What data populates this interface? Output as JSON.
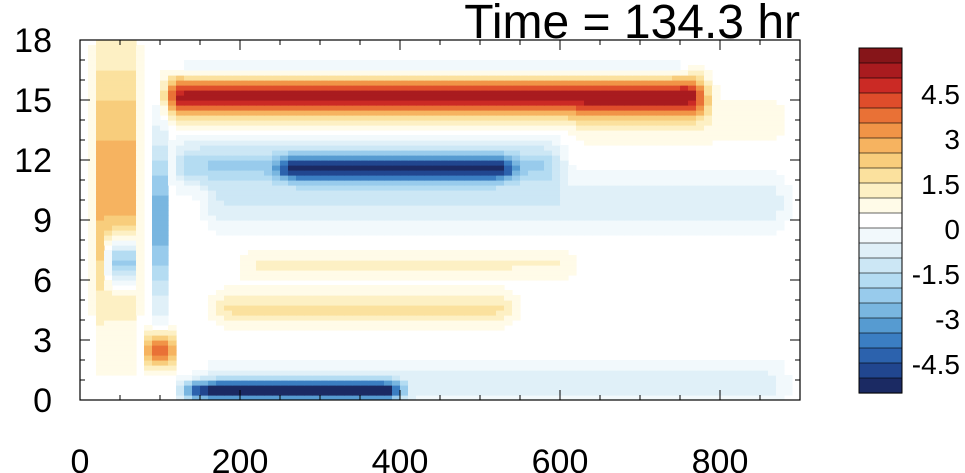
{
  "chart_data": {
    "type": "heatmap",
    "title": "Time = 134.3 hr",
    "xlim": [
      0,
      900
    ],
    "ylim": [
      0,
      18
    ],
    "x_ticks": [
      0,
      200,
      400,
      600,
      800
    ],
    "x_tick_labels": [
      "0",
      "200",
      "400",
      "600",
      "800"
    ],
    "y_ticks": [
      0,
      3,
      6,
      9,
      12,
      15,
      18
    ],
    "y_tick_labels": [
      "0",
      "3",
      "6",
      "9",
      "12",
      "15",
      "18"
    ],
    "xlabel": "",
    "ylabel": "",
    "colorbar": {
      "levels": [
        -5.5,
        -5,
        -4.5,
        -4,
        -3.5,
        -3,
        -2.5,
        -2,
        -1.5,
        -1,
        -0.5,
        0,
        0.5,
        1,
        1.5,
        2,
        2.5,
        3,
        3.5,
        4,
        4.5,
        5,
        5.5
      ],
      "colors": [
        "#1b2a63",
        "#21468f",
        "#2c62ad",
        "#3b7ec2",
        "#569bd1",
        "#79b6e0",
        "#98cbec",
        "#b4dcf2",
        "#cce7f5",
        "#e0f0f8",
        "#f2f9fc",
        "#ffffff",
        "#fffbe8",
        "#fdf0c4",
        "#fbe19e",
        "#f8cd7c",
        "#f6b360",
        "#f19447",
        "#e97136",
        "#df4d2b",
        "#cb2a25",
        "#a91b1f",
        "#861519"
      ],
      "tick_values": [
        4.5,
        3,
        1.5,
        0,
        -1.5,
        -3,
        -4.5
      ],
      "tick_labels": [
        "4.5",
        "3",
        "1.5",
        "0",
        "-1.5",
        "-3",
        "-4.5"
      ]
    },
    "features": [
      {
        "kind": "band",
        "x": [
          90,
          800
        ],
        "y_center": 15.2,
        "y_half_width": 1.0,
        "value": 5.0
      },
      {
        "kind": "band",
        "x": [
          100,
          620
        ],
        "y_center": 11.8,
        "y_half_width": 1.1,
        "value": -2.2
      },
      {
        "kind": "band",
        "x": [
          230,
          560
        ],
        "y_center": 11.6,
        "y_half_width": 0.6,
        "value": -3.5
      },
      {
        "kind": "band",
        "x": [
          140,
          900
        ],
        "y_center": 9.8,
        "y_half_width": 1.3,
        "value": -1.2
      },
      {
        "kind": "band",
        "x": [
          110,
          420
        ],
        "y_center": 0.5,
        "y_half_width": 0.5,
        "value": -5.0
      },
      {
        "kind": "band",
        "x": [
          140,
          900
        ],
        "y_center": 0.8,
        "y_half_width": 1.1,
        "value": -1.0
      },
      {
        "kind": "band",
        "x": [
          150,
          560
        ],
        "y_center": 4.6,
        "y_half_width": 0.8,
        "value": 1.4
      },
      {
        "kind": "band",
        "x": [
          180,
          640
        ],
        "y_center": 6.8,
        "y_half_width": 0.7,
        "value": 0.8
      },
      {
        "kind": "band",
        "x": [
          100,
          780
        ],
        "y_center": 16.6,
        "y_half_width": 0.5,
        "value": -1.0
      },
      {
        "kind": "band",
        "x": [
          600,
          900
        ],
        "y_center": 14.0,
        "y_half_width": 1.2,
        "value": 0.6
      },
      {
        "kind": "band",
        "x": [
          10,
          80
        ],
        "y_center": 11.0,
        "y_half_width": 6.5,
        "value": 2.5
      },
      {
        "kind": "band",
        "x": [
          30,
          75
        ],
        "y_center": 7.0,
        "y_half_width": 1.2,
        "value": -4.0
      },
      {
        "kind": "band",
        "x": [
          80,
          120
        ],
        "y_center": 2.5,
        "y_half_width": 0.8,
        "value": 4.0
      },
      {
        "kind": "band",
        "x": [
          90,
          110
        ],
        "y_center": 9.0,
        "y_half_width": 4.0,
        "value": -3.0
      }
    ]
  }
}
